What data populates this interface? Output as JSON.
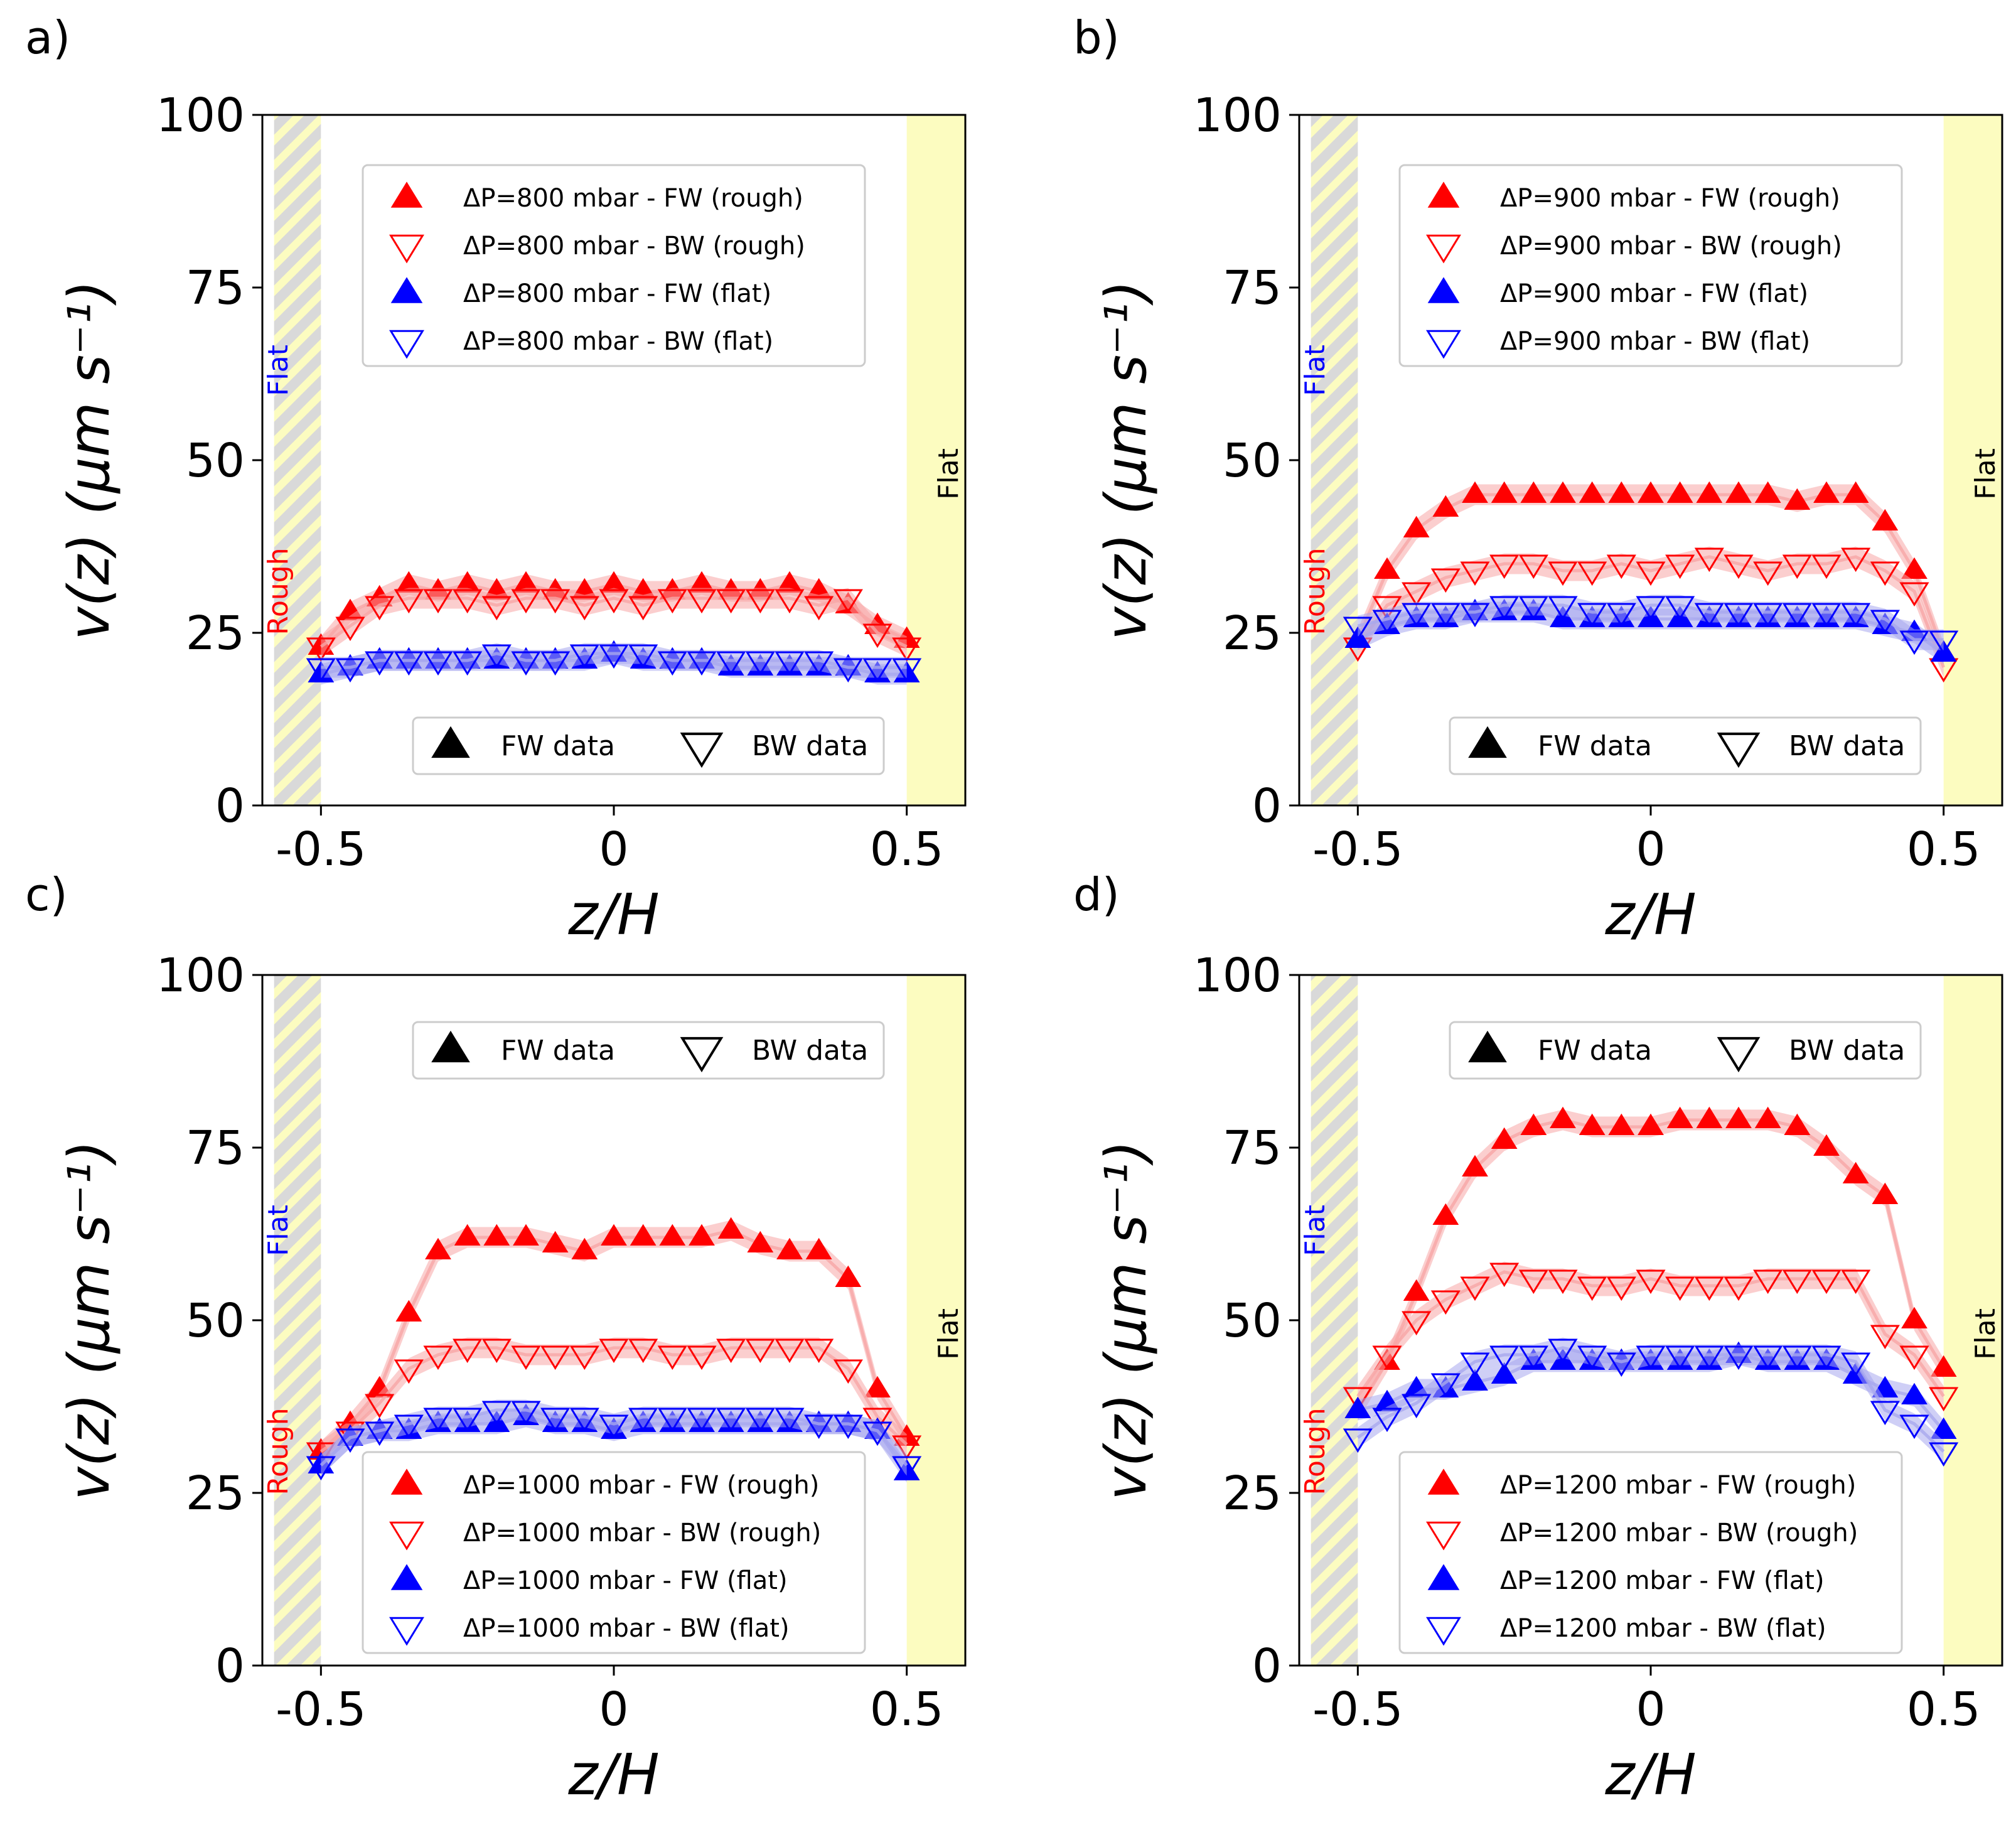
{
  "figure": {
    "colors": {
      "rough": "#ff0000",
      "flat": "#0000ff",
      "band_rough": "#f7a6a6",
      "band_flat": "#a8a8ee",
      "yellow": "#fcfcc0",
      "stripe_gray": "#d9d9d9"
    }
  },
  "chart_data": [
    {
      "type": "scatter",
      "panel": "a)",
      "xlabel": "z/H",
      "ylabel": "v(z)  (μm s⁻¹)",
      "xlim": [
        -0.6,
        0.6
      ],
      "ylim": [
        0,
        100
      ],
      "xticks": [
        "-0.5",
        "0",
        "0.5"
      ],
      "yticks": [
        "0",
        "25",
        "50",
        "75",
        "100"
      ],
      "walls": {
        "left_top": "Flat",
        "left_bottom": "Rough",
        "right": "Flat"
      },
      "legend_position": "top",
      "marker_legend_position": "bottom",
      "legend": [
        "ΔP=800 mbar - FW (rough)",
        "ΔP=800 mbar - BW (rough)",
        "ΔP=800 mbar - FW (flat)",
        "ΔP=800 mbar - BW (flat)"
      ],
      "marker_legend": [
        "FW data",
        "BW data"
      ],
      "x": [
        -0.5,
        -0.45,
        -0.4,
        -0.35,
        -0.3,
        -0.25,
        -0.2,
        -0.15,
        -0.1,
        -0.05,
        0,
        0.05,
        0.1,
        0.15,
        0.2,
        0.25,
        0.3,
        0.35,
        0.4,
        0.45,
        0.5
      ],
      "series": [
        {
          "name": "ΔP=800 mbar - FW (rough)",
          "values": [
            23,
            28,
            30,
            32,
            31,
            32,
            31,
            32,
            31,
            31,
            32,
            31,
            31,
            32,
            31,
            31,
            32,
            31,
            29,
            26,
            24
          ]
        },
        {
          "name": "ΔP=800 mbar - BW (rough)",
          "values": [
            23,
            26,
            29,
            30,
            30,
            30,
            29,
            30,
            30,
            29,
            30,
            29,
            30,
            30,
            30,
            30,
            30,
            29,
            30,
            25,
            23
          ]
        },
        {
          "name": "ΔP=800 mbar - FW (flat)",
          "values": [
            19,
            20,
            21,
            21,
            21,
            21,
            21,
            21,
            21,
            21,
            22,
            21,
            21,
            21,
            20,
            20,
            20,
            20,
            20,
            19,
            19
          ]
        },
        {
          "name": "ΔP=800 mbar - BW (flat)",
          "values": [
            20,
            20,
            21,
            21,
            21,
            21,
            22,
            21,
            21,
            22,
            22,
            22,
            21,
            21,
            21,
            21,
            21,
            21,
            20,
            20,
            20
          ]
        }
      ]
    },
    {
      "type": "scatter",
      "panel": "b)",
      "xlabel": "z/H",
      "ylabel": "v(z)  (μm s⁻¹)",
      "xlim": [
        -0.6,
        0.6
      ],
      "ylim": [
        0,
        100
      ],
      "xticks": [
        "-0.5",
        "0",
        "0.5"
      ],
      "yticks": [
        "0",
        "25",
        "50",
        "75",
        "100"
      ],
      "walls": {
        "left_top": "Flat",
        "left_bottom": "Rough",
        "right": "Flat"
      },
      "legend_position": "top",
      "marker_legend_position": "bottom",
      "legend": [
        "ΔP=900 mbar - FW (rough)",
        "ΔP=900 mbar - BW (rough)",
        "ΔP=900 mbar - FW (flat)",
        "ΔP=900 mbar - BW (flat)"
      ],
      "marker_legend": [
        "FW data",
        "BW data"
      ],
      "x": [
        -0.5,
        -0.45,
        -0.4,
        -0.35,
        -0.3,
        -0.25,
        -0.2,
        -0.15,
        -0.1,
        -0.05,
        0,
        0.05,
        0.1,
        0.15,
        0.2,
        0.25,
        0.3,
        0.35,
        0.4,
        0.45,
        0.5
      ],
      "series": [
        {
          "name": "ΔP=900 mbar - FW (rough)",
          "values": [
            24,
            34,
            40,
            43,
            45,
            45,
            45,
            45,
            45,
            45,
            45,
            45,
            45,
            45,
            45,
            44,
            45,
            45,
            41,
            34,
            22
          ]
        },
        {
          "name": "ΔP=900 mbar - BW (rough)",
          "values": [
            23,
            29,
            31,
            33,
            34,
            35,
            35,
            34,
            34,
            35,
            34,
            35,
            36,
            35,
            34,
            35,
            35,
            36,
            34,
            31,
            20
          ]
        },
        {
          "name": "ΔP=900 mbar - FW (flat)",
          "values": [
            24,
            26,
            27,
            27,
            28,
            28,
            28,
            27,
            27,
            27,
            27,
            27,
            27,
            27,
            27,
            27,
            27,
            27,
            26,
            25,
            22
          ]
        },
        {
          "name": "ΔP=900 mbar - BW (flat)",
          "values": [
            26,
            27,
            28,
            28,
            28,
            29,
            29,
            29,
            28,
            28,
            29,
            29,
            28,
            28,
            28,
            28,
            28,
            28,
            27,
            24,
            24
          ]
        }
      ]
    },
    {
      "type": "scatter",
      "panel": "c)",
      "xlabel": "z/H",
      "ylabel": "v(z)  (μm s⁻¹)",
      "xlim": [
        -0.6,
        0.6
      ],
      "ylim": [
        0,
        100
      ],
      "xticks": [
        "-0.5",
        "0",
        "0.5"
      ],
      "yticks": [
        "0",
        "25",
        "50",
        "75",
        "100"
      ],
      "walls": {
        "left_top": "Flat",
        "left_bottom": "Rough",
        "right": "Flat"
      },
      "legend_position": "bottom",
      "marker_legend_position": "top",
      "legend": [
        "ΔP=1000 mbar - FW (rough)",
        "ΔP=1000 mbar - BW (rough)",
        "ΔP=1000 mbar - FW (flat)",
        "ΔP=1000 mbar - BW (flat)"
      ],
      "marker_legend": [
        "FW data",
        "BW data"
      ],
      "x": [
        -0.5,
        -0.45,
        -0.4,
        -0.35,
        -0.3,
        -0.25,
        -0.2,
        -0.15,
        -0.1,
        -0.05,
        0,
        0.05,
        0.1,
        0.15,
        0.2,
        0.25,
        0.3,
        0.35,
        0.4,
        0.45,
        0.5
      ],
      "series": [
        {
          "name": "ΔP=1000 mbar - FW (rough)",
          "values": [
            31,
            35,
            40,
            51,
            60,
            62,
            62,
            62,
            61,
            60,
            62,
            62,
            62,
            62,
            63,
            61,
            60,
            60,
            56,
            40,
            33
          ]
        },
        {
          "name": "ΔP=1000 mbar - BW (rough)",
          "values": [
            31,
            34,
            38,
            43,
            45,
            46,
            46,
            45,
            45,
            45,
            46,
            46,
            45,
            45,
            46,
            46,
            46,
            46,
            43,
            36,
            32
          ]
        },
        {
          "name": "ΔP=1000 mbar - FW (flat)",
          "values": [
            29,
            33,
            34,
            34,
            35,
            35,
            35,
            36,
            35,
            35,
            34,
            35,
            35,
            35,
            35,
            35,
            35,
            35,
            35,
            34,
            28
          ]
        },
        {
          "name": "ΔP=1000 mbar - BW (flat)",
          "values": [
            29,
            33,
            34,
            35,
            36,
            36,
            37,
            37,
            36,
            36,
            35,
            36,
            36,
            36,
            36,
            36,
            36,
            35,
            35,
            34,
            29
          ]
        }
      ]
    },
    {
      "type": "scatter",
      "panel": "d)",
      "xlabel": "z/H",
      "ylabel": "v(z)  (μm s⁻¹)",
      "xlim": [
        -0.6,
        0.6
      ],
      "ylim": [
        0,
        100
      ],
      "xticks": [
        "-0.5",
        "0",
        "0.5"
      ],
      "yticks": [
        "0",
        "25",
        "50",
        "75",
        "100"
      ],
      "walls": {
        "left_top": "Flat",
        "left_bottom": "Rough",
        "right": "Flat"
      },
      "legend_position": "bottom",
      "marker_legend_position": "top",
      "legend": [
        "ΔP=1200 mbar - FW (rough)",
        "ΔP=1200 mbar - BW (rough)",
        "ΔP=1200 mbar - FW (flat)",
        "ΔP=1200 mbar - BW (flat)"
      ],
      "marker_legend": [
        "FW data",
        "BW data"
      ],
      "x": [
        -0.5,
        -0.45,
        -0.4,
        -0.35,
        -0.3,
        -0.25,
        -0.2,
        -0.15,
        -0.1,
        -0.05,
        0,
        0.05,
        0.1,
        0.15,
        0.2,
        0.25,
        0.3,
        0.35,
        0.4,
        0.45,
        0.5
      ],
      "series": [
        {
          "name": "ΔP=1200 mbar - FW (rough)",
          "values": [
            37,
            44,
            54,
            65,
            72,
            76,
            78,
            79,
            78,
            78,
            78,
            79,
            79,
            79,
            79,
            78,
            75,
            71,
            68,
            50,
            43
          ]
        },
        {
          "name": "ΔP=1200 mbar - BW (rough)",
          "values": [
            39,
            45,
            50,
            53,
            55,
            57,
            56,
            56,
            55,
            55,
            56,
            55,
            55,
            55,
            56,
            56,
            56,
            56,
            48,
            45,
            39
          ]
        },
        {
          "name": "ΔP=1200 mbar - FW (flat)",
          "values": [
            37,
            38,
            40,
            40,
            41,
            42,
            44,
            44,
            44,
            44,
            44,
            44,
            44,
            45,
            44,
            44,
            44,
            42,
            40,
            39,
            34
          ]
        },
        {
          "name": "ΔP=1200 mbar - BW (flat)",
          "values": [
            33,
            36,
            38,
            41,
            44,
            45,
            45,
            46,
            45,
            44,
            45,
            45,
            45,
            45,
            45,
            45,
            45,
            44,
            37,
            35,
            31
          ]
        }
      ]
    }
  ]
}
